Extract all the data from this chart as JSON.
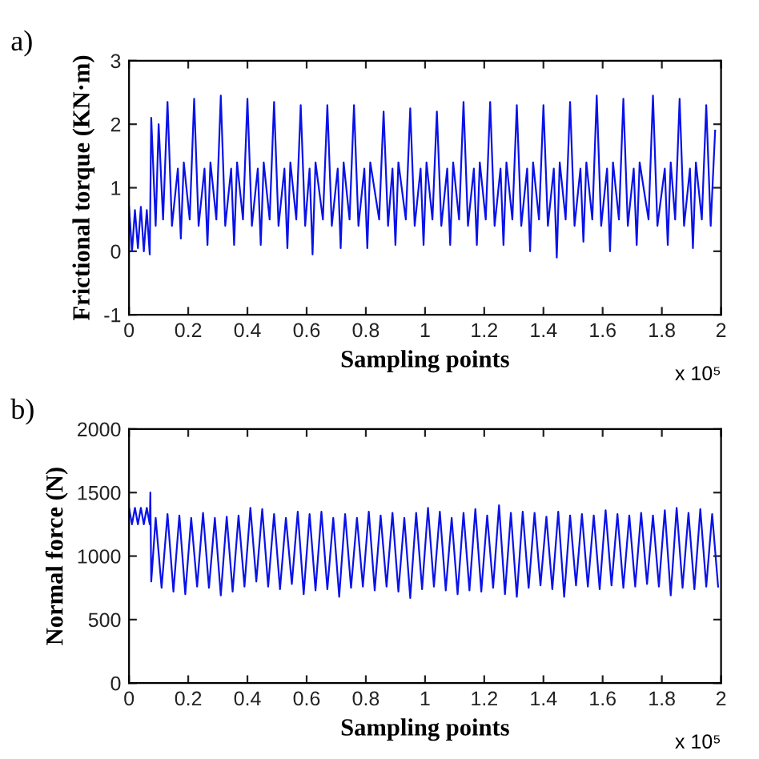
{
  "chart_data": [
    {
      "type": "line",
      "xlabel": "Sampling points",
      "ylabel": "Frictional torque (KN·m)",
      "annotations": [
        "a)",
        "x 10⁵"
      ],
      "xlim": [
        0,
        2
      ],
      "xticks": [
        0,
        0.2,
        0.4,
        0.6,
        0.8,
        1,
        1.2,
        1.4,
        1.6,
        1.8,
        2
      ],
      "ylim": [
        -1,
        3
      ],
      "yticks": [
        -1,
        0,
        1,
        2,
        3
      ],
      "grid": false,
      "series": [
        {
          "color": "#0a12e8",
          "x": [
            0,
            0.01,
            0.02,
            0.03,
            0.04,
            0.05,
            0.06,
            0.07,
            0.075,
            0.09,
            0.1,
            0.115,
            0.13,
            0.145,
            0.165,
            0.175,
            0.185,
            0.205,
            0.22,
            0.235,
            0.255,
            0.265,
            0.275,
            0.295,
            0.31,
            0.325,
            0.345,
            0.355,
            0.365,
            0.385,
            0.4,
            0.415,
            0.435,
            0.445,
            0.455,
            0.475,
            0.49,
            0.505,
            0.525,
            0.535,
            0.545,
            0.565,
            0.58,
            0.595,
            0.61,
            0.62,
            0.63,
            0.655,
            0.67,
            0.685,
            0.705,
            0.715,
            0.725,
            0.745,
            0.76,
            0.775,
            0.795,
            0.805,
            0.815,
            0.845,
            0.86,
            0.875,
            0.89,
            0.9,
            0.91,
            0.935,
            0.95,
            0.965,
            0.985,
            0.995,
            1.005,
            1.025,
            1.04,
            1.055,
            1.075,
            1.085,
            1.095,
            1.115,
            1.13,
            1.145,
            1.165,
            1.175,
            1.185,
            1.205,
            1.22,
            1.235,
            1.255,
            1.265,
            1.275,
            1.295,
            1.31,
            1.325,
            1.345,
            1.355,
            1.365,
            1.385,
            1.4,
            1.415,
            1.435,
            1.445,
            1.455,
            1.475,
            1.49,
            1.505,
            1.525,
            1.535,
            1.545,
            1.565,
            1.58,
            1.595,
            1.615,
            1.625,
            1.635,
            1.655,
            1.67,
            1.685,
            1.705,
            1.715,
            1.725,
            1.755,
            1.77,
            1.785,
            1.81,
            1.82,
            1.83,
            1.845,
            1.86,
            1.875,
            1.895,
            1.905,
            1.915,
            1.935,
            1.95,
            1.965,
            1.98
          ],
          "values": [
            0.7,
            0,
            0.65,
            0.05,
            0.7,
            0,
            0.65,
            -0.05,
            2.1,
            0.4,
            2.0,
            0.5,
            2.35,
            0.4,
            1.3,
            0.2,
            1.4,
            0.5,
            2.4,
            0.4,
            1.3,
            0.1,
            1.4,
            0.5,
            2.45,
            0.4,
            1.3,
            0.1,
            1.4,
            0.5,
            2.4,
            0.4,
            1.3,
            0.1,
            1.4,
            0.5,
            2.35,
            0.4,
            1.3,
            0.05,
            1.4,
            0.5,
            2.3,
            0.4,
            1.3,
            -0.05,
            1.4,
            0.5,
            2.3,
            0.4,
            1.3,
            0.05,
            1.4,
            0.5,
            2.3,
            0.4,
            1.3,
            0.05,
            1.4,
            0.5,
            2.2,
            0.4,
            1.3,
            0.1,
            1.4,
            0.5,
            2.25,
            0.4,
            1.3,
            0.1,
            1.4,
            0.5,
            2.2,
            0.4,
            1.3,
            0.1,
            1.4,
            0.5,
            2.35,
            0.4,
            1.3,
            0.1,
            1.4,
            0.5,
            2.35,
            0.4,
            1.3,
            0.1,
            1.4,
            0.5,
            2.3,
            0.4,
            1.3,
            0,
            1.4,
            0.5,
            2.3,
            0.4,
            1.3,
            -0.1,
            1.4,
            0.5,
            2.35,
            0.4,
            1.3,
            0.15,
            1.4,
            0.5,
            2.45,
            0.4,
            1.3,
            0,
            1.4,
            0.5,
            2.4,
            0.4,
            1.3,
            0.1,
            1.4,
            0.5,
            2.45,
            0.4,
            1.3,
            0.1,
            1.4,
            0.5,
            2.4,
            0.4,
            1.3,
            0.05,
            1.4,
            0.5,
            2.3,
            0.4,
            1.9
          ]
        }
      ]
    },
    {
      "type": "line",
      "xlabel": "Sampling points",
      "ylabel": "Normal force (N)",
      "annotations": [
        "b)",
        "x 10⁵"
      ],
      "xlim": [
        0,
        2
      ],
      "xticks": [
        0,
        0.2,
        0.4,
        0.6,
        0.8,
        1,
        1.2,
        1.4,
        1.6,
        1.8,
        2
      ],
      "ylim": [
        0,
        2000
      ],
      "yticks": [
        0,
        500,
        1000,
        1500,
        2000
      ],
      "grid": false,
      "series": [
        {
          "color": "#0a12e8",
          "x": [
            0,
            0.01,
            0.02,
            0.03,
            0.04,
            0.05,
            0.06,
            0.07,
            0.072,
            0.075,
            0.09,
            0.11,
            0.13,
            0.15,
            0.17,
            0.19,
            0.21,
            0.23,
            0.25,
            0.27,
            0.29,
            0.31,
            0.33,
            0.35,
            0.37,
            0.39,
            0.41,
            0.43,
            0.45,
            0.47,
            0.49,
            0.51,
            0.53,
            0.55,
            0.57,
            0.59,
            0.61,
            0.63,
            0.65,
            0.67,
            0.69,
            0.71,
            0.73,
            0.75,
            0.77,
            0.79,
            0.81,
            0.83,
            0.85,
            0.87,
            0.89,
            0.91,
            0.93,
            0.95,
            0.97,
            0.99,
            1.01,
            1.03,
            1.05,
            1.07,
            1.09,
            1.11,
            1.13,
            1.15,
            1.17,
            1.19,
            1.21,
            1.23,
            1.25,
            1.27,
            1.29,
            1.31,
            1.33,
            1.35,
            1.37,
            1.39,
            1.41,
            1.43,
            1.45,
            1.47,
            1.49,
            1.51,
            1.53,
            1.55,
            1.57,
            1.59,
            1.61,
            1.63,
            1.65,
            1.67,
            1.69,
            1.71,
            1.73,
            1.75,
            1.77,
            1.79,
            1.81,
            1.83,
            1.85,
            1.87,
            1.89,
            1.91,
            1.93,
            1.95,
            1.97,
            1.99
          ],
          "values": [
            1380,
            1250,
            1380,
            1250,
            1380,
            1250,
            1380,
            1250,
            1500,
            800,
            1300,
            750,
            1330,
            720,
            1320,
            700,
            1300,
            760,
            1340,
            750,
            1300,
            690,
            1310,
            720,
            1320,
            760,
            1380,
            800,
            1370,
            760,
            1330,
            740,
            1300,
            780,
            1350,
            700,
            1330,
            730,
            1350,
            740,
            1300,
            680,
            1330,
            750,
            1300,
            760,
            1350,
            730,
            1320,
            760,
            1340,
            720,
            1300,
            670,
            1340,
            740,
            1380,
            760,
            1350,
            730,
            1300,
            700,
            1340,
            730,
            1370,
            720,
            1320,
            750,
            1400,
            700,
            1340,
            680,
            1350,
            750,
            1340,
            770,
            1310,
            740,
            1350,
            680,
            1320,
            770,
            1330,
            760,
            1320,
            740,
            1360,
            770,
            1330,
            750,
            1320,
            760,
            1340,
            780,
            1320,
            760,
            1360,
            690,
            1380,
            750,
            1340,
            740,
            1370,
            760,
            1330,
            760
          ]
        }
      ]
    }
  ]
}
